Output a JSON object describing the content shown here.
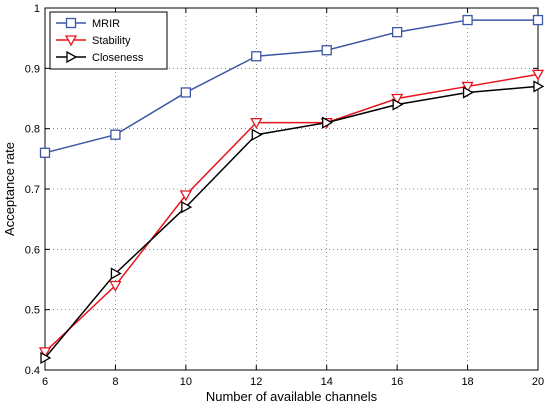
{
  "chart_data": {
    "type": "line",
    "xlabel": "Number of available channels",
    "ylabel": "Acceptance rate",
    "x": [
      6,
      8,
      10,
      12,
      14,
      16,
      18,
      20
    ],
    "xlim": [
      6,
      20
    ],
    "ylim": [
      0.4,
      1.0
    ],
    "xticks": [
      "6",
      "8",
      "10",
      "12",
      "14",
      "16",
      "18",
      "20"
    ],
    "yticks": [
      "0.4",
      "0.5",
      "0.6",
      "0.7",
      "0.8",
      "0.9",
      "1"
    ],
    "grid": true,
    "legend_position": "top-left",
    "series": [
      {
        "name": "MRIR",
        "color": "#3d56a6",
        "marker": "square",
        "values": [
          0.76,
          0.79,
          0.86,
          0.92,
          0.93,
          0.96,
          0.98,
          0.98
        ]
      },
      {
        "name": "Stability",
        "color": "#e8141c",
        "marker": "triangle-down",
        "values": [
          0.43,
          0.54,
          0.69,
          0.81,
          0.81,
          0.85,
          0.87,
          0.89
        ]
      },
      {
        "name": "Closeness",
        "color": "#000000",
        "marker": "triangle-right",
        "values": [
          0.42,
          0.56,
          0.67,
          0.79,
          0.81,
          0.84,
          0.86,
          0.87
        ]
      }
    ]
  }
}
